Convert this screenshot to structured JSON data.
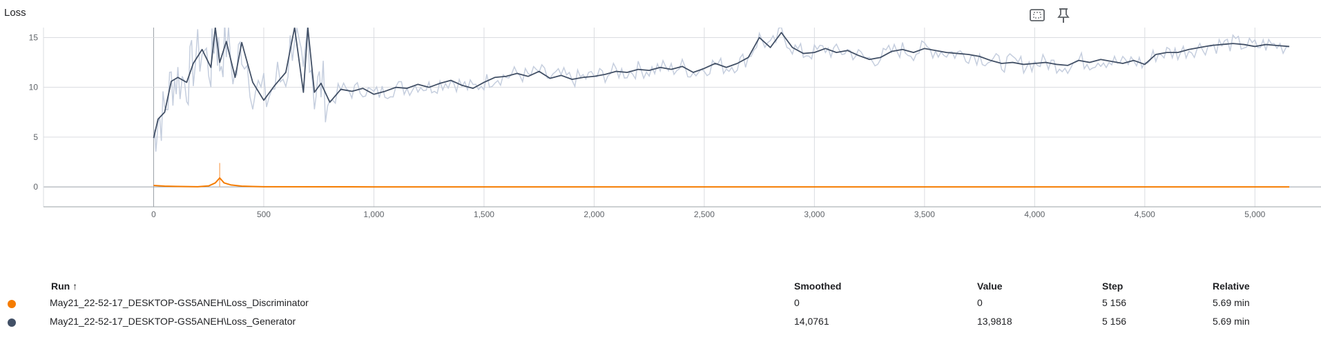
{
  "card": {
    "title": "Loss",
    "icons": [
      "fit-domain-icon",
      "pin-icon"
    ]
  },
  "colors": {
    "discriminator": "#f57c00",
    "generator": "#425066",
    "generator_raw": "#c5cede",
    "grid": "#dadce0",
    "axis_text": "#5f6368"
  },
  "table": {
    "headers": {
      "run": "Run ↑",
      "smoothed": "Smoothed",
      "value": "Value",
      "step": "Step",
      "relative": "Relative"
    },
    "rows": [
      {
        "run": "May21_22-52-17_DESKTOP-GS5ANEH\\Loss_Discriminator",
        "smoothed": "0",
        "value": "0",
        "step": "5 156",
        "relative": "5.69 min",
        "color": "#f57c00"
      },
      {
        "run": "May21_22-52-17_DESKTOP-GS5ANEH\\Loss_Generator",
        "smoothed": "14,0761",
        "value": "13,9818",
        "step": "5 156",
        "relative": "5.69 min",
        "color": "#425066"
      }
    ]
  },
  "chart_data": {
    "type": "line",
    "title": "Loss",
    "xlabel": "",
    "ylabel": "",
    "xlim": [
      -500,
      5300
    ],
    "ylim": [
      -2,
      16
    ],
    "grid": true,
    "x_ticks": [
      0,
      500,
      1000,
      1500,
      2000,
      2500,
      3000,
      3500,
      4000,
      4500,
      5000
    ],
    "x_tick_labels": [
      "0",
      "500",
      "1,000",
      "1,500",
      "2,000",
      "2,500",
      "3,000",
      "3,500",
      "4,000",
      "4,500",
      "5,000"
    ],
    "y_ticks": [
      0,
      5,
      10,
      15
    ],
    "y_tick_labels": [
      "0",
      "5",
      "10",
      "15"
    ],
    "series": [
      {
        "name": "May21_22-52-17_DESKTOP-GS5ANEH\\Loss_Generator",
        "smoothed": true,
        "x": [
          0,
          20,
          50,
          80,
          110,
          150,
          180,
          220,
          260,
          280,
          300,
          330,
          370,
          400,
          450,
          500,
          550,
          600,
          640,
          680,
          700,
          730,
          760,
          800,
          850,
          900,
          950,
          1000,
          1050,
          1100,
          1150,
          1200,
          1250,
          1300,
          1350,
          1400,
          1450,
          1500,
          1550,
          1600,
          1650,
          1700,
          1750,
          1800,
          1850,
          1900,
          1950,
          2000,
          2050,
          2100,
          2150,
          2200,
          2250,
          2300,
          2350,
          2400,
          2450,
          2500,
          2550,
          2600,
          2650,
          2700,
          2750,
          2800,
          2850,
          2900,
          2950,
          3000,
          3050,
          3100,
          3150,
          3200,
          3250,
          3300,
          3350,
          3400,
          3450,
          3500,
          3550,
          3600,
          3650,
          3700,
          3750,
          3800,
          3850,
          3900,
          3950,
          4000,
          4050,
          4100,
          4150,
          4200,
          4250,
          4300,
          4350,
          4400,
          4450,
          4500,
          4550,
          4600,
          4650,
          4700,
          4750,
          4800,
          4850,
          4900,
          4950,
          5000,
          5050,
          5100,
          5156
        ],
        "y": [
          4.9,
          6.8,
          7.5,
          10.6,
          11.0,
          10.5,
          12.4,
          13.8,
          12.0,
          16.0,
          12.5,
          14.6,
          11.0,
          14.5,
          10.5,
          8.7,
          10.2,
          11.5,
          16.0,
          9.5,
          16.0,
          9.5,
          10.4,
          8.5,
          9.8,
          9.6,
          9.9,
          9.3,
          9.6,
          10.0,
          9.9,
          10.3,
          10.0,
          10.4,
          10.7,
          10.2,
          9.9,
          10.5,
          11.0,
          11.1,
          11.4,
          11.1,
          11.6,
          10.9,
          11.2,
          10.8,
          11.0,
          11.1,
          11.3,
          11.6,
          11.5,
          11.8,
          11.7,
          12.0,
          11.8,
          12.1,
          11.5,
          11.9,
          12.4,
          12.0,
          12.4,
          13.0,
          15.0,
          14.0,
          15.5,
          14.0,
          13.4,
          13.5,
          13.9,
          13.5,
          13.7,
          13.2,
          12.8,
          13.0,
          13.6,
          13.8,
          13.5,
          13.9,
          13.7,
          13.5,
          13.4,
          13.3,
          13.1,
          12.7,
          12.4,
          12.5,
          12.3,
          12.4,
          12.5,
          12.3,
          12.2,
          12.7,
          12.5,
          12.8,
          12.6,
          12.4,
          12.7,
          12.3,
          13.3,
          13.5,
          13.5,
          13.8,
          14.0,
          14.2,
          14.3,
          14.4,
          14.3,
          14.1,
          14.3,
          14.2,
          14.1
        ],
        "color": "#425066"
      },
      {
        "name": "May21_22-52-17_DESKTOP-GS5ANEH\\Loss_Discriminator",
        "smoothed": true,
        "x": [
          0,
          50,
          100,
          150,
          200,
          250,
          280,
          300,
          320,
          350,
          400,
          450,
          500,
          1000,
          2000,
          3000,
          4000,
          5000,
          5156
        ],
        "y": [
          0.15,
          0.08,
          0.05,
          0.03,
          0.02,
          0.1,
          0.4,
          0.9,
          0.4,
          0.2,
          0.08,
          0.04,
          0.02,
          0.0,
          0.0,
          0.0,
          0.0,
          0.0,
          0.0
        ],
        "color": "#f57c00"
      }
    ]
  }
}
